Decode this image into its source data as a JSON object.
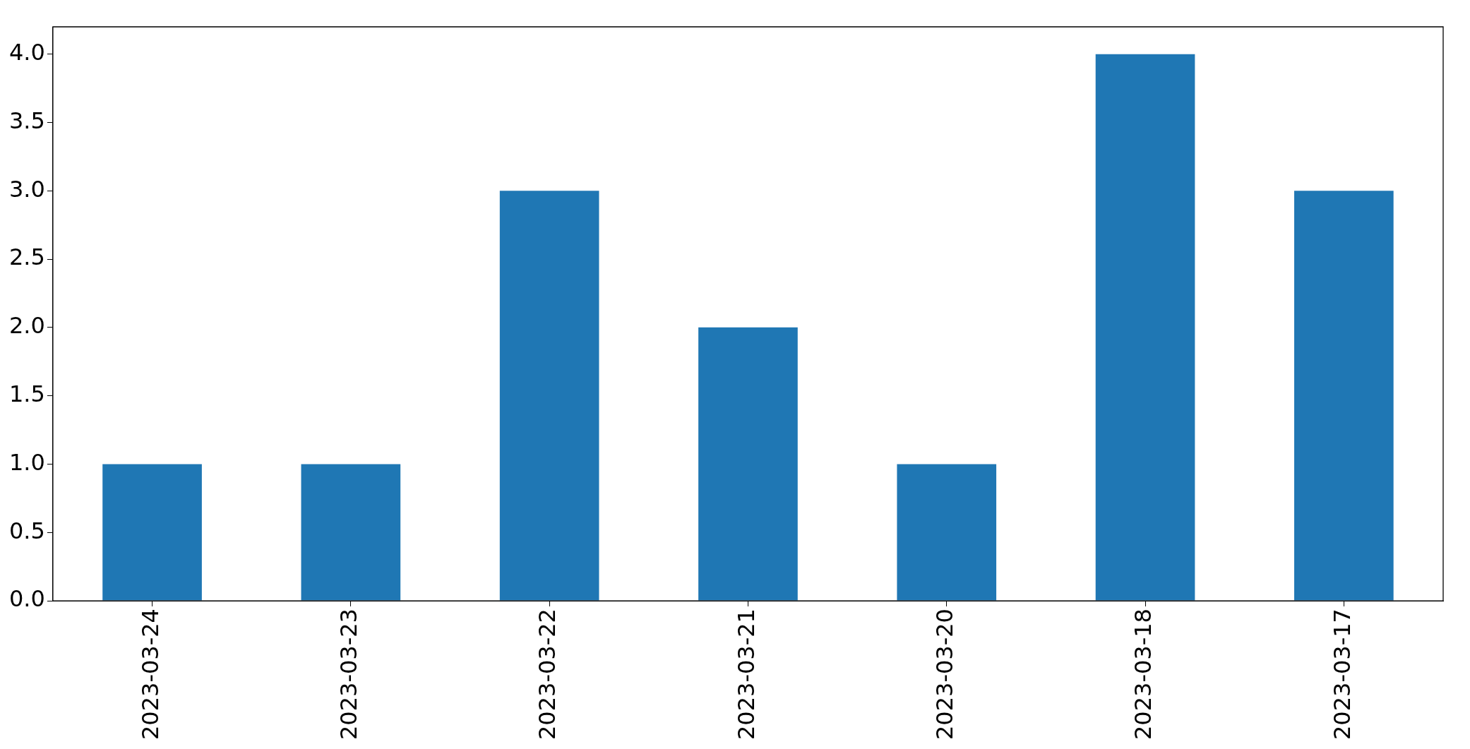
{
  "chart_data": {
    "type": "bar",
    "categories": [
      "2023-03-24",
      "2023-03-23",
      "2023-03-22",
      "2023-03-21",
      "2023-03-20",
      "2023-03-18",
      "2023-03-17"
    ],
    "values": [
      1,
      1,
      3,
      2,
      1,
      4,
      3
    ],
    "color": "#1f77b4",
    "ylim": [
      0,
      4.2
    ],
    "yticks": [
      {
        "value": 0,
        "label": "0.0"
      },
      {
        "value": 0.5,
        "label": "0.5"
      },
      {
        "value": 1,
        "label": "1.0"
      },
      {
        "value": 1.5,
        "label": "1.5"
      },
      {
        "value": 2,
        "label": "2.0"
      },
      {
        "value": 2.5,
        "label": "2.5"
      },
      {
        "value": 3,
        "label": "3.0"
      },
      {
        "value": 3.5,
        "label": "3.5"
      },
      {
        "value": 4,
        "label": "4.0"
      }
    ]
  }
}
